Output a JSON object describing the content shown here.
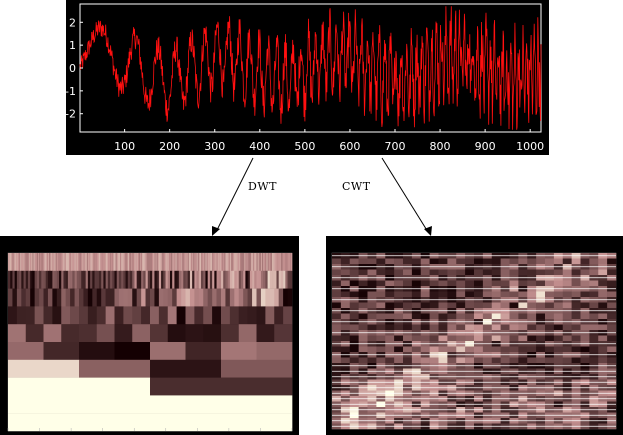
{
  "colors": {
    "signal": "#ff1010",
    "panel_bg": "#000000",
    "axis_text": "#ffffff",
    "scalogram_dark": "#140002",
    "scalogram_mid": "#c49090",
    "scalogram_light": "#ffffe8"
  },
  "signal_plot": {
    "x_ticks": [
      "100",
      "200",
      "300",
      "400",
      "500",
      "600",
      "700",
      "800",
      "900",
      "1000"
    ],
    "y_ticks": [
      "2",
      "1",
      "0",
      "-1",
      "-2"
    ],
    "xlim": [
      1,
      1024
    ],
    "ylim": [
      -2.8,
      2.8
    ]
  },
  "arrows": {
    "dwt_label": "DWT",
    "cwt_label": "CWT"
  },
  "dwt_plot": {
    "levels": 10
  },
  "cwt_plot": {
    "scales": 32
  }
}
